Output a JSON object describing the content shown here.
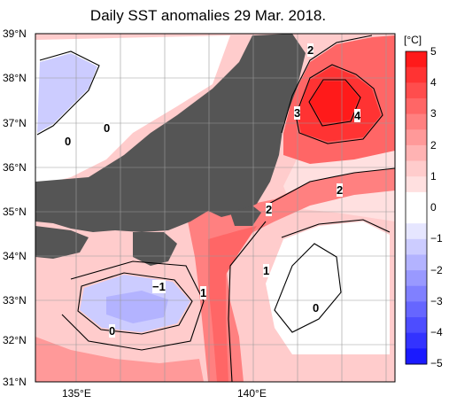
{
  "title": "Daily SST anomalies 29 Mar. 2018.",
  "colorbar": {
    "unit": "[°C]",
    "ticks": [
      "5",
      "4",
      "3",
      "2",
      "1",
      "0",
      "−1",
      "−2",
      "−3",
      "−4",
      "−5"
    ],
    "colors": [
      "#ff1a1a",
      "#ff3333",
      "#ff4d4d",
      "#ff6666",
      "#ff8080",
      "#ff9999",
      "#ffb3b3",
      "#ffcccc",
      "#ffe0e0",
      "#ffffff",
      "#ffffff",
      "#e6e6ff",
      "#ccccff",
      "#b3b3ff",
      "#9999ff",
      "#8080ff",
      "#6666ff",
      "#4d4dff",
      "#3333ff",
      "#1a1aff"
    ]
  },
  "axes": {
    "lat_labels": [
      "39°N",
      "38°N",
      "37°N",
      "36°N",
      "35°N",
      "34°N",
      "33°N",
      "32°N",
      "31°N"
    ],
    "lon_labels": [
      "135°E",
      "140°E"
    ]
  },
  "contour_labels": [
    "2",
    "3",
    "4",
    "0",
    "0",
    "2",
    "2",
    "1",
    "1",
    "−1",
    "0",
    "0"
  ],
  "colors": {
    "land": "#555555",
    "grid": "#9a9a9a"
  }
}
